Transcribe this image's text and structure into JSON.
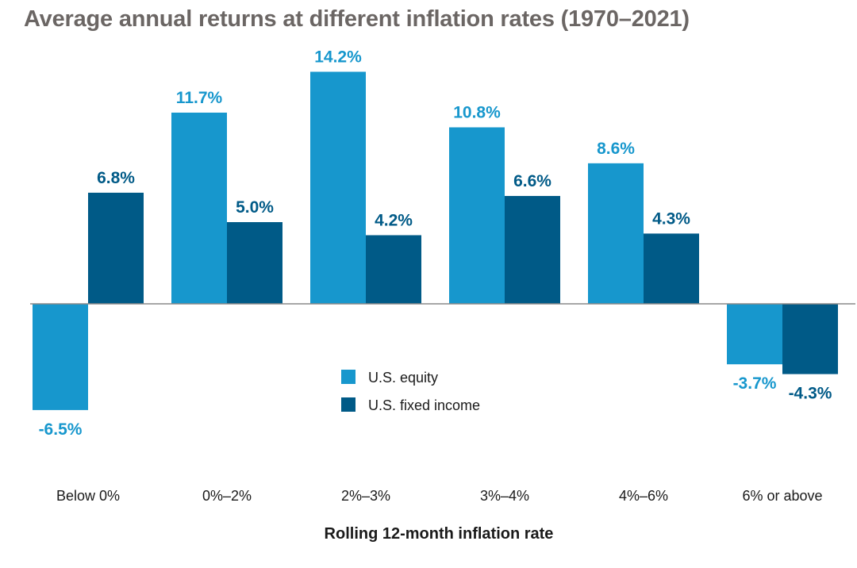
{
  "chart_data": {
    "type": "bar",
    "title": "Average annual returns at different inflation rates (1970–2021)",
    "xlabel": "Rolling 12-month inflation rate",
    "ylabel": "",
    "categories": [
      "Below 0%",
      "0%–2%",
      "2%–3%",
      "3%–4%",
      "4%–6%",
      "6% or above"
    ],
    "series": [
      {
        "name": "U.S. equity",
        "values": [
          -6.5,
          11.7,
          14.2,
          10.8,
          8.6,
          -3.7
        ],
        "labels": [
          "-6.5%",
          "11.7%",
          "14.2%",
          "10.8%",
          "8.6%",
          "-3.7%"
        ],
        "color": "#1797cd"
      },
      {
        "name": "U.S. fixed income",
        "values": [
          6.8,
          5.0,
          4.2,
          6.6,
          4.3,
          -4.3
        ],
        "labels": [
          "6.8%",
          "5.0%",
          "4.2%",
          "6.6%",
          "4.3%",
          "-4.3%"
        ],
        "color": "#005a87"
      }
    ],
    "ylim": [
      -10,
      16
    ],
    "legend_position": "center",
    "grid": false,
    "zero_line_color": "#8a8a8a",
    "title_color": "#6b6664"
  }
}
